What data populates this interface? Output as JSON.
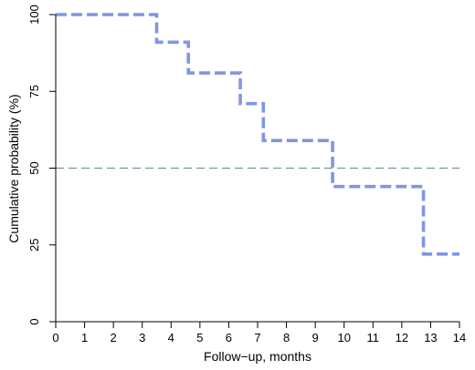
{
  "chart_data": {
    "type": "line",
    "title": "",
    "xlabel": "Follow−up, months",
    "ylabel": "Cumulative probability (%)",
    "xlim": [
      0,
      14
    ],
    "ylim": [
      0,
      100
    ],
    "x_ticks": [
      0,
      1,
      2,
      3,
      4,
      5,
      6,
      7,
      8,
      9,
      10,
      11,
      12,
      13,
      14
    ],
    "y_ticks": [
      0,
      25,
      50,
      75,
      100
    ],
    "grid": false,
    "legend": "none",
    "step": true,
    "series": [
      {
        "color": "#7f96e6",
        "line_style": "dashed",
        "x": [
          0,
          3.5,
          4.6,
          6.4,
          7.2,
          9.6,
          12.75,
          14
        ],
        "y": [
          100,
          91,
          81,
          71,
          59,
          44,
          22,
          22
        ]
      }
    ],
    "reference_lines": [
      {
        "orientation": "horizontal",
        "y": 50,
        "color": "#6f9c8f",
        "line_style": "dashed"
      }
    ]
  }
}
